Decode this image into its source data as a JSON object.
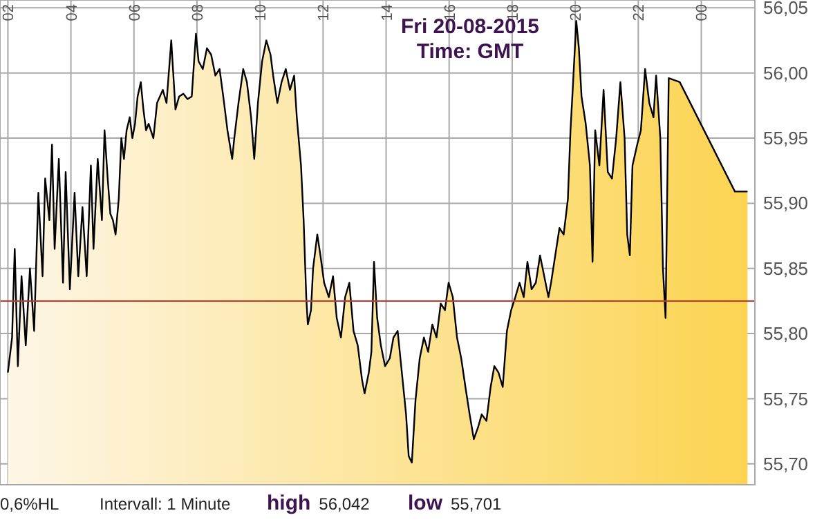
{
  "chart_data": {
    "type": "area",
    "title": "Fri 20-08-2015",
    "subtitle": "Time: GMT",
    "annotations": [
      "0,6%HL",
      "Intervall: 1 Minute",
      "high 56,042",
      "low 55,701"
    ],
    "xlim": [
      "2015-08-20T01:45",
      "2015-08-21T01:42"
    ],
    "xticks": [
      {
        "value": "2015-08-20T02:00",
        "label": "02"
      },
      {
        "value": "2015-08-20T04:00",
        "label": "04"
      },
      {
        "value": "2015-08-20T06:00",
        "label": "06"
      },
      {
        "value": "2015-08-20T08:00",
        "label": "08"
      },
      {
        "value": "2015-08-20T10:00",
        "label": "10"
      },
      {
        "value": "2015-08-20T12:00",
        "label": "12"
      },
      {
        "value": "2015-08-20T14:00",
        "label": "14"
      },
      {
        "value": "2015-08-20T16:00",
        "label": "16"
      },
      {
        "value": "2015-08-20T18:00",
        "label": "18"
      },
      {
        "value": "2015-08-20T20:00",
        "label": "20"
      },
      {
        "value": "2015-08-20T22:00",
        "label": "22"
      },
      {
        "value": "2015-08-21T00:00",
        "label": "00"
      }
    ],
    "ylim": [
      55.684,
      56.056
    ],
    "yticks": [
      {
        "value": 55.7,
        "label": "55,70"
      },
      {
        "value": 55.75,
        "label": "55,75"
      },
      {
        "value": 55.8,
        "label": "55,80"
      },
      {
        "value": 55.85,
        "label": "55,85"
      },
      {
        "value": 55.9,
        "label": "55,90"
      },
      {
        "value": 55.95,
        "label": "55,95"
      },
      {
        "value": 56.0,
        "label": "56,00"
      },
      {
        "value": 56.05,
        "label": "56,05"
      }
    ],
    "grid": true,
    "ref_lines": [
      {
        "axis": "y",
        "value": 55.825,
        "color": "#c0392b"
      }
    ],
    "series": [
      {
        "color": "#000000",
        "x": [
          "2015-08-20T02:00",
          "2015-08-20T02:08",
          "2015-08-20T02:13",
          "2015-08-20T02:19",
          "2015-08-20T02:26",
          "2015-08-20T02:34",
          "2015-08-20T02:42",
          "2015-08-20T02:50",
          "2015-08-20T02:58",
          "2015-08-20T03:06",
          "2015-08-20T03:11",
          "2015-08-20T03:19",
          "2015-08-20T03:24",
          "2015-08-20T03:29",
          "2015-08-20T03:37",
          "2015-08-20T03:45",
          "2015-08-20T03:50",
          "2015-08-20T03:58",
          "2015-08-20T04:07",
          "2015-08-20T04:14",
          "2015-08-20T04:22",
          "2015-08-20T04:30",
          "2015-08-20T04:38",
          "2015-08-20T04:43",
          "2015-08-20T04:51",
          "2015-08-20T04:59",
          "2015-08-20T05:04",
          "2015-08-20T05:10",
          "2015-08-20T05:15",
          "2015-08-20T05:20",
          "2015-08-20T05:25",
          "2015-08-20T05:31",
          "2015-08-20T05:36",
          "2015-08-20T05:41",
          "2015-08-20T05:46",
          "2015-08-20T05:52",
          "2015-08-20T05:57",
          "2015-08-20T06:02",
          "2015-08-20T06:07",
          "2015-08-20T06:13",
          "2015-08-20T06:18",
          "2015-08-20T06:23",
          "2015-08-20T06:28",
          "2015-08-20T06:37",
          "2015-08-20T06:44",
          "2015-08-20T06:55",
          "2015-08-20T07:02",
          "2015-08-20T07:11",
          "2015-08-20T07:19",
          "2015-08-20T07:26",
          "2015-08-20T07:34",
          "2015-08-20T07:42",
          "2015-08-20T07:50",
          "2015-08-20T07:58",
          "2015-08-20T08:03",
          "2015-08-20T08:11",
          "2015-08-20T08:19",
          "2015-08-20T08:27",
          "2015-08-20T08:35",
          "2015-08-20T08:43",
          "2015-08-20T08:50",
          "2015-08-20T08:58",
          "2015-08-20T09:07",
          "2015-08-20T09:11",
          "2015-08-20T09:19",
          "2015-08-20T09:28",
          "2015-08-20T09:35",
          "2015-08-20T09:43",
          "2015-08-20T09:49",
          "2015-08-20T09:56",
          "2015-08-20T10:04",
          "2015-08-20T10:12",
          "2015-08-20T10:20",
          "2015-08-20T10:25",
          "2015-08-20T10:33",
          "2015-08-20T10:41",
          "2015-08-20T10:49",
          "2015-08-20T10:57",
          "2015-08-20T11:05",
          "2015-08-20T11:10",
          "2015-08-20T11:18",
          "2015-08-20T11:23",
          "2015-08-20T11:28",
          "2015-08-20T11:31",
          "2015-08-20T11:37",
          "2015-08-20T11:41",
          "2015-08-20T11:49",
          "2015-08-20T11:55",
          "2015-08-20T12:02",
          "2015-08-20T12:11",
          "2015-08-20T12:19",
          "2015-08-20T12:26",
          "2015-08-20T12:34",
          "2015-08-20T12:42",
          "2015-08-20T12:50",
          "2015-08-20T12:58",
          "2015-08-20T13:06",
          "2015-08-20T13:14",
          "2015-08-20T13:19",
          "2015-08-20T13:27",
          "2015-08-20T13:32",
          "2015-08-20T13:37",
          "2015-08-20T13:43",
          "2015-08-20T13:50",
          "2015-08-20T13:58",
          "2015-08-20T14:07",
          "2015-08-20T14:14",
          "2015-08-20T14:22",
          "2015-08-20T14:30",
          "2015-08-20T14:38",
          "2015-08-20T14:43",
          "2015-08-20T14:49",
          "2015-08-20T14:56",
          "2015-08-20T15:04",
          "2015-08-20T15:12",
          "2015-08-20T15:20",
          "2015-08-20T15:28",
          "2015-08-20T15:36",
          "2015-08-20T15:44",
          "2015-08-20T15:52",
          "2015-08-20T15:59",
          "2015-08-20T16:07",
          "2015-08-20T16:15",
          "2015-08-20T16:23",
          "2015-08-20T16:31",
          "2015-08-20T16:39",
          "2015-08-20T16:47",
          "2015-08-20T16:55",
          "2015-08-20T17:02",
          "2015-08-20T17:11",
          "2015-08-20T17:19",
          "2015-08-20T17:26",
          "2015-08-20T17:34",
          "2015-08-20T17:42",
          "2015-08-20T17:50",
          "2015-08-20T17:58",
          "2015-08-20T18:06",
          "2015-08-20T18:14",
          "2015-08-20T18:22",
          "2015-08-20T18:29",
          "2015-08-20T18:37",
          "2015-08-20T18:45",
          "2015-08-20T18:53",
          "2015-08-20T19:01",
          "2015-08-20T19:09",
          "2015-08-20T19:14",
          "2015-08-20T19:22",
          "2015-08-20T19:30",
          "2015-08-20T19:38",
          "2015-08-20T19:46",
          "2015-08-20T19:51",
          "2015-08-20T19:56",
          "2015-08-20T20:02",
          "2015-08-20T20:07",
          "2015-08-20T20:12",
          "2015-08-20T20:20",
          "2015-08-20T20:28",
          "2015-08-20T20:33",
          "2015-08-20T20:38",
          "2015-08-20T20:46",
          "2015-08-20T20:54",
          "2015-08-20T21:02",
          "2015-08-20T21:10",
          "2015-08-20T21:18",
          "2015-08-20T21:26",
          "2015-08-20T21:34",
          "2015-08-20T21:39",
          "2015-08-20T21:44",
          "2015-08-20T21:49",
          "2015-08-20T21:58",
          "2015-08-20T22:05",
          "2015-08-20T22:13",
          "2015-08-20T22:21",
          "2015-08-20T22:29",
          "2015-08-20T22:34",
          "2015-08-20T22:42",
          "2015-08-20T22:47",
          "2015-08-20T22:52",
          "2015-08-20T22:58",
          "2015-08-20T23:19",
          "2015-08-21T01:04",
          "2015-08-21T01:28"
        ],
        "values": [
          55.77,
          55.797,
          55.865,
          55.775,
          55.844,
          55.791,
          55.85,
          55.802,
          55.908,
          55.844,
          55.919,
          55.887,
          55.945,
          55.865,
          55.934,
          55.839,
          55.924,
          55.834,
          55.908,
          55.844,
          55.897,
          55.844,
          55.929,
          55.865,
          55.934,
          55.887,
          55.956,
          55.919,
          55.892,
          55.887,
          55.876,
          55.903,
          55.95,
          55.934,
          55.956,
          55.966,
          55.95,
          55.961,
          55.982,
          55.993,
          55.972,
          55.956,
          55.961,
          55.95,
          55.977,
          55.987,
          55.977,
          56.025,
          55.972,
          55.982,
          55.984,
          55.98,
          55.982,
          56.03,
          56.009,
          56.003,
          56.019,
          56.014,
          55.998,
          56.003,
          55.982,
          55.956,
          55.934,
          55.95,
          55.977,
          56.003,
          55.993,
          55.966,
          55.934,
          55.977,
          56.009,
          56.025,
          56.014,
          55.998,
          55.977,
          55.993,
          56.003,
          55.987,
          55.998,
          55.966,
          55.929,
          55.887,
          55.828,
          55.807,
          55.818,
          55.85,
          55.876,
          55.86,
          55.839,
          55.828,
          55.844,
          55.812,
          55.797,
          55.828,
          55.839,
          55.802,
          55.791,
          55.765,
          55.754,
          55.77,
          55.786,
          55.855,
          55.812,
          55.791,
          55.775,
          55.781,
          55.797,
          55.802,
          55.77,
          55.738,
          55.706,
          55.701,
          55.749,
          55.781,
          55.797,
          55.786,
          55.807,
          55.797,
          55.823,
          55.818,
          55.839,
          55.828,
          55.797,
          55.781,
          55.759,
          55.738,
          55.719,
          55.728,
          55.738,
          55.733,
          55.759,
          55.775,
          55.77,
          55.759,
          55.802,
          55.818,
          55.828,
          55.839,
          55.828,
          55.855,
          55.834,
          55.839,
          55.86,
          55.844,
          55.828,
          55.839,
          55.86,
          55.881,
          55.876,
          55.903,
          55.956,
          55.993,
          56.04,
          56.019,
          55.982,
          55.961,
          55.929,
          55.855,
          55.956,
          55.929,
          55.987,
          55.924,
          55.919,
          55.95,
          55.993,
          55.95,
          55.876,
          55.86,
          55.929,
          55.945,
          55.956,
          56.003,
          55.977,
          55.966,
          55.998,
          55.95,
          55.85,
          55.812,
          55.996,
          55.993,
          55.909,
          55.909
        ]
      }
    ]
  }
}
